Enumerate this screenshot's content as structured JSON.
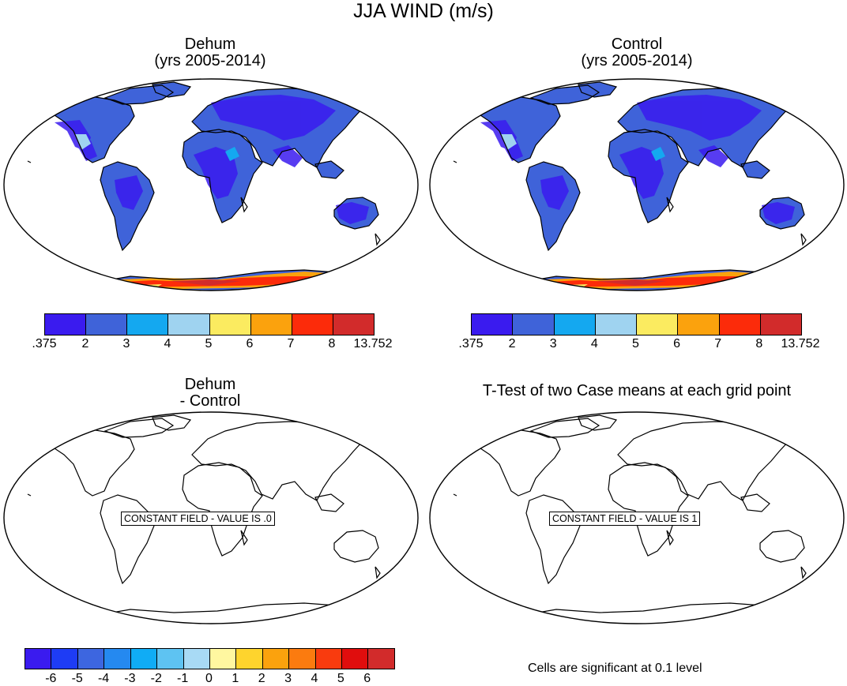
{
  "main_title": "JJA WIND (m/s)",
  "panels": [
    {
      "id": "dehum",
      "title_line1": "Dehum",
      "title_line2": "(yrs 2005-2014)"
    },
    {
      "id": "control",
      "title_line1": "Control",
      "title_line2": "(yrs 2005-2014)"
    },
    {
      "id": "diff",
      "title_line1": "Dehum",
      "title_line2": "- Control",
      "constant_field_label": "CONSTANT FIELD - VALUE IS .0"
    },
    {
      "id": "ttest",
      "title_line1": "T-Test of two Case means at each grid point",
      "constant_field_label": "CONSTANT FIELD - VALUE IS 1"
    }
  ],
  "wind_colorbar": {
    "tick_labels": [
      ".375",
      "2",
      "3",
      "4",
      "5",
      "6",
      "7",
      "8",
      "13.752"
    ],
    "colors": [
      "#3a1bef",
      "#3f63d9",
      "#14a8f0",
      "#9fd3f0",
      "#fbeb60",
      "#fba20d",
      "#fc2b0a",
      "#d22b2b"
    ]
  },
  "diff_colorbar": {
    "tick_labels": [
      "-6",
      "-5",
      "-4",
      "-3",
      "-2",
      "-1",
      "0",
      "1",
      "2",
      "3",
      "4",
      "5",
      "6"
    ],
    "colors": [
      "#3a1bef",
      "#1e3cf5",
      "#3d66e0",
      "#2589f0",
      "#10acf5",
      "#5ec3f2",
      "#a8daf5",
      "#fff7a0",
      "#fed42d",
      "#fba20d",
      "#fb7b0f",
      "#f93b0e",
      "#e00d0d",
      "#d22b2b"
    ]
  },
  "significance_note": "Cells are significant at 0.1 level"
}
